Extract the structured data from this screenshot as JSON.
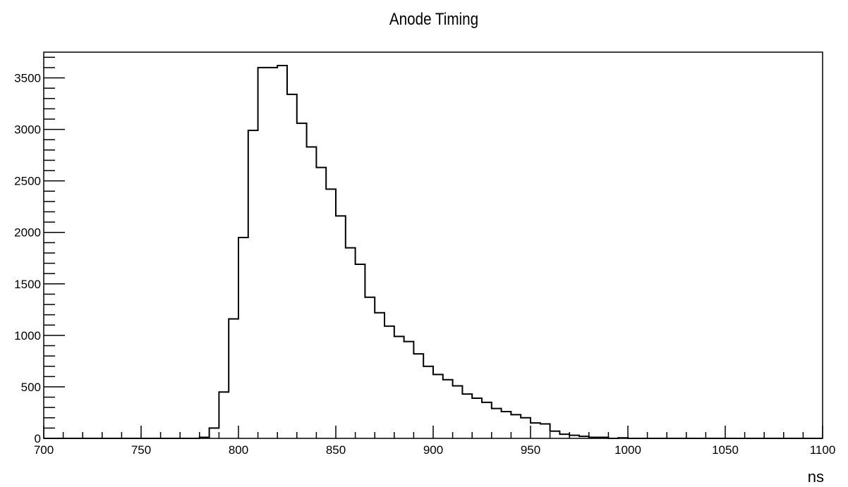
{
  "chart_data": {
    "type": "histogram",
    "title": "Anode Timing",
    "xlabel": "ns",
    "ylabel": "",
    "xlim": [
      700,
      1100
    ],
    "ylim": [
      0,
      3750
    ],
    "x_ticks": [
      700,
      750,
      800,
      850,
      900,
      950,
      1000,
      1050,
      1100
    ],
    "y_ticks": [
      0,
      500,
      1000,
      1500,
      2000,
      2500,
      3000,
      3500
    ],
    "bin_width": 5,
    "bin_start": 700,
    "values": [
      0,
      0,
      0,
      0,
      0,
      0,
      0,
      0,
      0,
      0,
      0,
      0,
      0,
      0,
      0,
      0,
      10,
      100,
      450,
      1160,
      1950,
      2990,
      3600,
      3600,
      3620,
      3340,
      3060,
      2830,
      2630,
      2420,
      2160,
      1850,
      1690,
      1370,
      1220,
      1090,
      990,
      940,
      820,
      700,
      620,
      570,
      510,
      430,
      390,
      350,
      290,
      260,
      230,
      200,
      150,
      140,
      70,
      40,
      30,
      20,
      10,
      10,
      0,
      5,
      0,
      0,
      0,
      0,
      0,
      0,
      0,
      0,
      0,
      0,
      0,
      0,
      0,
      0,
      0,
      0,
      0,
      0,
      0,
      0
    ]
  }
}
